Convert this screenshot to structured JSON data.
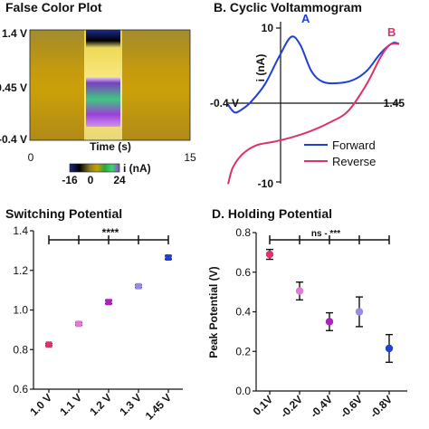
{
  "panels": {
    "a": {
      "title": "False Color Plot",
      "xlabel": "Time (s)",
      "x_ticks": [
        "0",
        "15"
      ],
      "y_ticks": [
        "1.4 V",
        "0.45 V",
        "-0.4 V"
      ],
      "colorbar": {
        "label": "i (nA)",
        "ticks": [
          "-16",
          "0",
          "24"
        ],
        "colors": [
          "#1a2a8a",
          "#000000",
          "#8a7a20",
          "#c9a000",
          "#2fa045",
          "#39d96a",
          "#9a3fd8"
        ]
      }
    },
    "b": {
      "title": "B. Cyclic Voltammogram",
      "ylabel": "i (nA)",
      "y_ticks": [
        "10",
        "-10"
      ],
      "x_tick_left": "-0.4 V",
      "x_tick_right": "1.45",
      "marker_a": "A",
      "marker_b": "B",
      "legend": [
        "Forward",
        "Reverse"
      ],
      "colors": {
        "forward": "#1f3fd6",
        "reverse": "#e0306e"
      }
    },
    "c": {
      "title": "Switching Potential",
      "sig_label": "****",
      "y_ticks": [
        "1.4",
        "1.2",
        "1.0",
        "0.8",
        "0.6"
      ],
      "x_ticks": [
        "1.0 V",
        "1.1 V",
        "1.2 V",
        "1.3 V",
        "1.45 V"
      ]
    },
    "d": {
      "title": "D. Holding Potential",
      "ylabel": "Peak Potential (V)",
      "sig_label": "ns - ***",
      "y_ticks": [
        "0.8",
        "0.6",
        "0.4",
        "0.2",
        "0.0"
      ],
      "x_ticks": [
        "0.1V",
        "-0.2V",
        "-0.4V",
        "-0.6V",
        "-0.8V"
      ]
    }
  },
  "chart_data": [
    {
      "type": "heatmap",
      "title": "False Color Plot",
      "xlabel": "Time (s)",
      "xlim": [
        0,
        15
      ],
      "y_ticks": [
        "1.4 V",
        "0.45 V",
        "-0.4 V"
      ],
      "colorbar_label": "i (nA)",
      "colorbar_range": [
        -16,
        24
      ]
    },
    {
      "type": "line",
      "title": "B. Cyclic Voltammogram",
      "ylabel": "i (nA)",
      "xlim": [
        -0.4,
        1.45
      ],
      "ylim": [
        -10,
        10
      ],
      "series": [
        {
          "name": "Forward",
          "x": [
            -0.4,
            -0.33,
            -0.25,
            -0.15,
            0.0,
            0.15,
            0.28,
            0.38,
            0.5,
            0.62,
            0.78,
            0.95,
            1.1,
            1.25,
            1.38,
            1.45
          ],
          "y": [
            -0.2,
            -1.2,
            -0.8,
            0.2,
            2.5,
            6.0,
            8.6,
            7.6,
            4.2,
            2.8,
            2.6,
            3.0,
            4.2,
            6.5,
            7.8,
            7.7
          ]
        },
        {
          "name": "Reverse",
          "x": [
            1.45,
            1.35,
            1.25,
            1.1,
            0.9,
            0.7,
            0.5,
            0.3,
            0.1,
            -0.1,
            -0.25,
            -0.35,
            -0.4
          ],
          "y": [
            7.7,
            7.6,
            6.0,
            2.5,
            -1.0,
            -2.5,
            -3.6,
            -4.4,
            -5.0,
            -5.5,
            -6.7,
            -8.4,
            -10.5
          ]
        }
      ]
    },
    {
      "type": "scatter",
      "title": "Switching Potential",
      "categories": [
        "1.0 V",
        "1.1 V",
        "1.2 V",
        "1.3 V",
        "1.45 V"
      ],
      "values": [
        0.825,
        0.93,
        1.04,
        1.12,
        1.265
      ],
      "errors": [
        0.005,
        0.006,
        0.008,
        0.006,
        0.008
      ],
      "colors": [
        "#e0306e",
        "#e07ad8",
        "#b020c0",
        "#9a8ae8",
        "#1f3fd6"
      ],
      "ylim": [
        0.6,
        1.4
      ],
      "annotation": "****"
    },
    {
      "type": "scatter",
      "title": "D. Holding Potential",
      "ylabel": "Peak Potential (V)",
      "categories": [
        "0.1V",
        "-0.2V",
        "-0.4V",
        "-0.6V",
        "-0.8V"
      ],
      "values": [
        0.69,
        0.505,
        0.35,
        0.4,
        0.215
      ],
      "errors": [
        0.025,
        0.045,
        0.045,
        0.075,
        0.07
      ],
      "colors": [
        "#e0306e",
        "#e07ad8",
        "#b020c0",
        "#9a8ae8",
        "#1f3fd6"
      ],
      "ylim": [
        0.0,
        0.8
      ],
      "annotation": "ns - ***"
    }
  ]
}
